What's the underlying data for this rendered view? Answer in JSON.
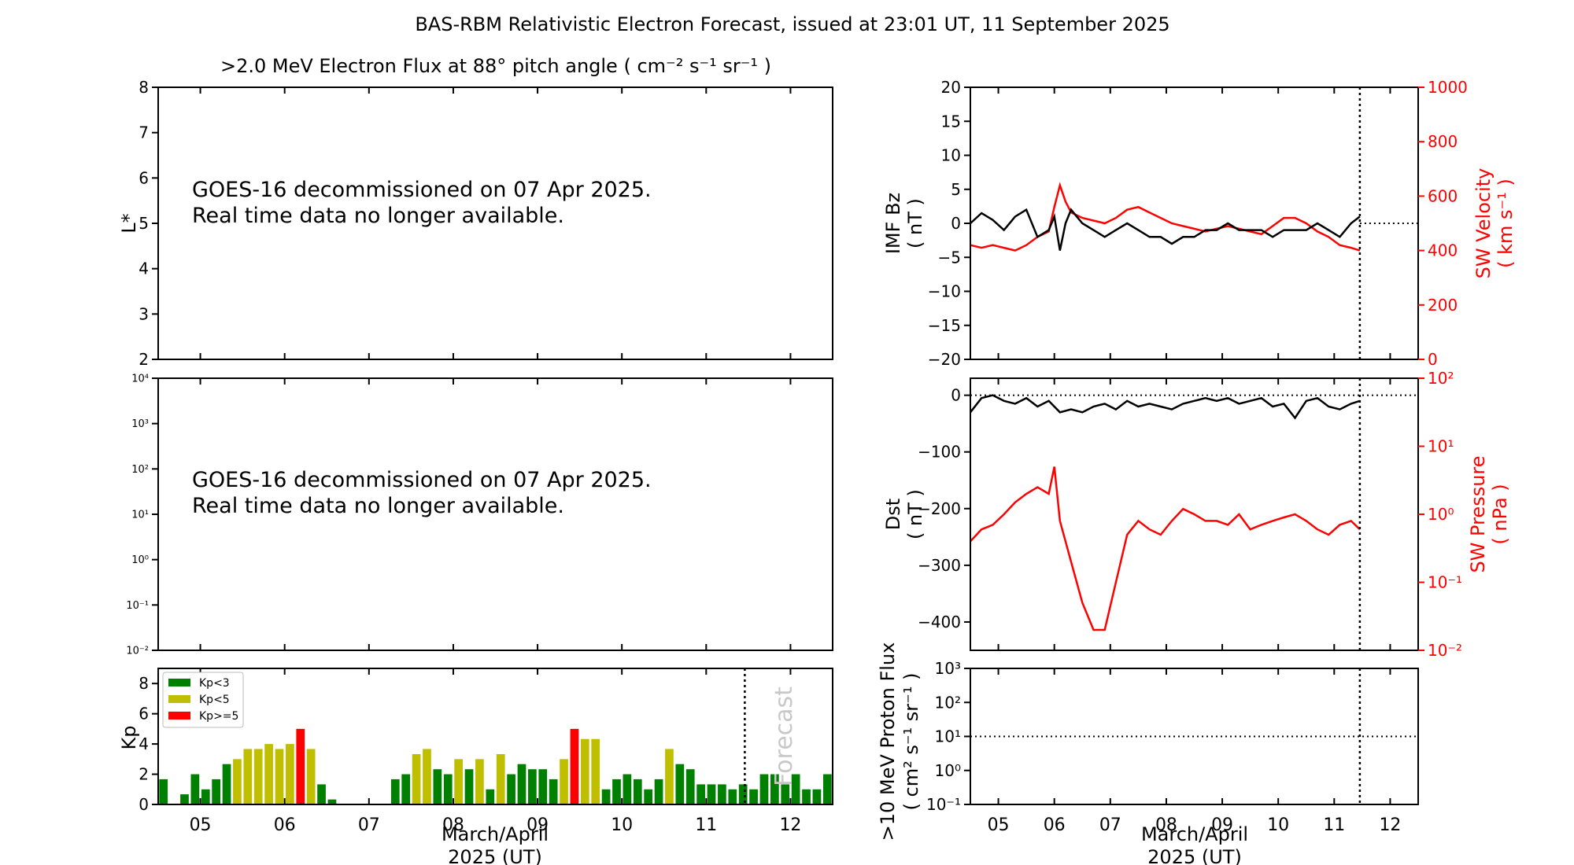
{
  "figure": {
    "title": "BAS-RBM Relativistic Electron Forecast, issued at 23:01 UT, 11 September 2025"
  },
  "panels": {
    "flux": {
      "title": ">2.0 MeV Electron Flux at 88° pitch angle ( cm⁻² s⁻¹ sr⁻¹ )",
      "ylabel": "L*",
      "notice_line1": "GOES-16 decommissioned on 07 Apr 2025.",
      "notice_line2": "Real time data no longer available."
    },
    "flux2": {
      "notice_line1": "GOES-16 decommissioned on 07 Apr 2025.",
      "notice_line2": "Real time data no longer available."
    },
    "kp": {
      "ylabel": "Kp",
      "forecast_label": "Forecast",
      "legend": [
        "Kp<3",
        "Kp<5",
        "Kp>=5"
      ]
    },
    "imf": {
      "ylabel_left_1": "IMF Bz",
      "ylabel_left_2": "( nT )",
      "ylabel_right_1": "SW Velocity",
      "ylabel_right_2": "( km s⁻¹ )"
    },
    "dst": {
      "ylabel_left_1": "Dst",
      "ylabel_left_2": "( nT )",
      "ylabel_right_1": "SW Pressure",
      "ylabel_right_2": "( nPa )"
    },
    "proton": {
      "ylabel_1": ">10 MeV Proton Flux",
      "ylabel_2": "( cm² s⁻¹ sr⁻¹ )"
    }
  },
  "xaxis": {
    "label_1": "March/April",
    "label_2": "2025 (UT)"
  },
  "colors": {
    "kp_low": "#008000",
    "kp_mid": "#bfbf00",
    "kp_high": "#ff0000",
    "sw_series": "#ff0000",
    "imf_series": "#000000",
    "forecast_text": "#c8c8c8"
  },
  "chart_data": [
    {
      "type": "heatmap",
      "panel": "flux",
      "ylim": [
        2,
        8
      ],
      "yticks": [
        "2",
        "3",
        "4",
        "5",
        "6",
        "7",
        "8"
      ],
      "xlim": [
        4.5,
        12.5
      ],
      "values": []
    },
    {
      "type": "heatmap",
      "panel": "flux2",
      "yscale": "log",
      "ylim": [
        -2,
        4
      ],
      "yticks": [
        "10⁻²",
        "10⁻¹",
        "10⁰",
        "10¹",
        "10²",
        "10³",
        "10⁴"
      ],
      "xlim": [
        4.5,
        12.5
      ],
      "values": []
    },
    {
      "type": "bar",
      "panel": "kp",
      "xlim": [
        4.5,
        12.5
      ],
      "ylim": [
        0,
        9
      ],
      "yticks": [
        "0",
        "2",
        "4",
        "6",
        "8"
      ],
      "xticks": [
        "05",
        "06",
        "07",
        "08",
        "09",
        "10",
        "11",
        "12"
      ],
      "forecast_start": 11.458,
      "bar_width_days": 0.1,
      "x": [
        4.5625,
        4.6875,
        4.8125,
        4.9375,
        5.0625,
        5.1875,
        5.3125,
        5.4375,
        5.5625,
        5.6875,
        5.8125,
        5.9375,
        6.0625,
        6.1875,
        6.3125,
        6.4375,
        6.5625,
        6.6875,
        6.8125,
        6.9375,
        7.0625,
        7.1875,
        7.3125,
        7.4375,
        7.5625,
        7.6875,
        7.8125,
        7.9375,
        8.0625,
        8.1875,
        8.3125,
        8.4375,
        8.5625,
        8.6875,
        8.8125,
        8.9375,
        9.0625,
        9.1875,
        9.3125,
        9.4375,
        9.5625,
        9.6875,
        9.8125,
        9.9375,
        10.0625,
        10.1875,
        10.3125,
        10.4375,
        10.5625,
        10.6875,
        10.8125,
        10.9375,
        11.0625,
        11.1875,
        11.3125,
        11.4375,
        11.5625,
        11.6875,
        11.8125,
        11.9375,
        12.0625,
        12.1875,
        12.3125,
        12.4375
      ],
      "values": [
        1.67,
        0,
        0.67,
        2,
        1,
        1.67,
        2.67,
        3,
        3.67,
        3.67,
        4,
        3.67,
        4,
        5,
        3.67,
        1.33,
        0.33,
        0,
        0,
        0,
        0,
        0,
        1.67,
        2,
        3.33,
        3.67,
        2.33,
        2,
        3,
        2.33,
        3,
        1,
        3.33,
        2,
        2.67,
        2.33,
        2.33,
        1.67,
        3,
        5,
        4.33,
        4.33,
        1,
        1.67,
        2,
        1.67,
        1,
        1.67,
        3.67,
        2.67,
        2.33,
        1.33,
        1.33,
        1.33,
        1,
        1.33,
        1,
        2,
        2,
        1.33,
        2,
        1,
        1,
        2
      ]
    },
    {
      "type": "line",
      "panel": "imf",
      "xlim": [
        4.5,
        12.5
      ],
      "ylim": [
        -20,
        20
      ],
      "ylim_right": [
        0,
        1000
      ],
      "yticks": [
        "−20",
        "−15",
        "−10",
        "−5",
        "0",
        "5",
        "10",
        "15",
        "20"
      ],
      "yticks_right": [
        "0",
        "200",
        "400",
        "600",
        "800",
        "1000"
      ],
      "xticks": [
        "05",
        "06",
        "07",
        "08",
        "09",
        "10",
        "11",
        "12"
      ],
      "forecast_start": 11.458,
      "series": [
        {
          "name": "IMF Bz",
          "x": [
            4.5,
            4.7,
            4.9,
            5.1,
            5.3,
            5.5,
            5.7,
            5.9,
            6.0,
            6.1,
            6.2,
            6.3,
            6.5,
            6.7,
            6.9,
            7.1,
            7.3,
            7.5,
            7.7,
            7.9,
            8.1,
            8.3,
            8.5,
            8.7,
            8.9,
            9.1,
            9.3,
            9.5,
            9.7,
            9.9,
            10.1,
            10.3,
            10.5,
            10.7,
            10.9,
            11.1,
            11.3,
            11.458
          ],
          "values": [
            0,
            1.5,
            0.5,
            -1,
            1,
            2,
            -2,
            -1,
            1,
            -4,
            0,
            2,
            0,
            -1,
            -2,
            -1,
            0,
            -1,
            -2,
            -2,
            -3,
            -2,
            -2,
            -1,
            -1,
            0,
            -1,
            -1,
            -1,
            -2,
            -1,
            -1,
            -1,
            0,
            -1,
            -2,
            0,
            1
          ]
        },
        {
          "name": "SW Velocity",
          "axis": "right",
          "x": [
            4.5,
            4.7,
            4.9,
            5.1,
            5.3,
            5.5,
            5.7,
            5.9,
            6.0,
            6.1,
            6.2,
            6.3,
            6.5,
            6.7,
            6.9,
            7.1,
            7.3,
            7.5,
            7.7,
            7.9,
            8.1,
            8.3,
            8.5,
            8.7,
            8.9,
            9.1,
            9.3,
            9.5,
            9.7,
            9.9,
            10.1,
            10.3,
            10.5,
            10.7,
            10.9,
            11.1,
            11.3,
            11.458
          ],
          "values": [
            420,
            410,
            420,
            410,
            400,
            420,
            450,
            470,
            560,
            640,
            580,
            540,
            520,
            510,
            500,
            520,
            550,
            560,
            540,
            520,
            500,
            490,
            480,
            470,
            480,
            490,
            480,
            470,
            460,
            490,
            520,
            520,
            500,
            470,
            450,
            420,
            410,
            400
          ]
        }
      ]
    },
    {
      "type": "line",
      "panel": "dst",
      "xlim": [
        4.5,
        12.5
      ],
      "ylim": [
        -450,
        30
      ],
      "yscale_right": "log",
      "ylim_right": [
        -2,
        2
      ],
      "yticks": [
        "−400",
        "−300",
        "−200",
        "−100",
        "0"
      ],
      "yticks_right": [
        "10⁻²",
        "10⁻¹",
        "10⁰",
        "10¹",
        "10²"
      ],
      "xticks": [
        "05",
        "06",
        "07",
        "08",
        "09",
        "10",
        "11",
        "12"
      ],
      "forecast_start": 11.458,
      "series": [
        {
          "name": "Dst",
          "x": [
            4.5,
            4.7,
            4.9,
            5.1,
            5.3,
            5.5,
            5.7,
            5.9,
            6.1,
            6.3,
            6.5,
            6.7,
            6.9,
            7.1,
            7.3,
            7.5,
            7.7,
            7.9,
            8.1,
            8.3,
            8.5,
            8.7,
            8.9,
            9.1,
            9.3,
            9.5,
            9.7,
            9.9,
            10.1,
            10.3,
            10.5,
            10.7,
            10.9,
            11.1,
            11.3,
            11.458
          ],
          "values": [
            -30,
            -5,
            0,
            -10,
            -15,
            -5,
            -20,
            -10,
            -30,
            -25,
            -30,
            -20,
            -15,
            -25,
            -10,
            -20,
            -15,
            -20,
            -25,
            -15,
            -10,
            -5,
            -10,
            -5,
            -15,
            -10,
            -5,
            -20,
            -15,
            -40,
            -10,
            -5,
            -20,
            -25,
            -15,
            -10
          ]
        },
        {
          "name": "SW Pressure",
          "axis": "right",
          "x": [
            4.5,
            4.7,
            4.9,
            5.1,
            5.3,
            5.5,
            5.7,
            5.9,
            6.0,
            6.1,
            6.3,
            6.5,
            6.7,
            6.9,
            7.1,
            7.3,
            7.5,
            7.7,
            7.9,
            8.1,
            8.3,
            8.5,
            8.7,
            8.9,
            9.1,
            9.3,
            9.5,
            9.7,
            9.9,
            10.1,
            10.3,
            10.5,
            10.7,
            10.9,
            11.1,
            11.3,
            11.458
          ],
          "values": [
            0.4,
            0.6,
            0.7,
            1,
            1.5,
            2,
            2.5,
            2,
            5,
            0.8,
            0.2,
            0.05,
            0.02,
            0.02,
            0.1,
            0.5,
            0.8,
            0.6,
            0.5,
            0.8,
            1.2,
            1,
            0.8,
            0.8,
            0.7,
            1,
            0.6,
            0.7,
            0.8,
            0.9,
            1,
            0.8,
            0.6,
            0.5,
            0.7,
            0.8,
            0.6
          ]
        }
      ]
    },
    {
      "type": "line",
      "panel": "proton",
      "yscale": "log",
      "xlim": [
        4.5,
        12.5
      ],
      "ylim": [
        -1,
        3
      ],
      "yticks": [
        "10⁻¹",
        "10⁰",
        "10¹",
        "10²",
        "10³"
      ],
      "xticks": [
        "05",
        "06",
        "07",
        "08",
        "09",
        "10",
        "11",
        "12"
      ],
      "forecast_start": 11.458,
      "threshold": 10,
      "series": []
    }
  ]
}
